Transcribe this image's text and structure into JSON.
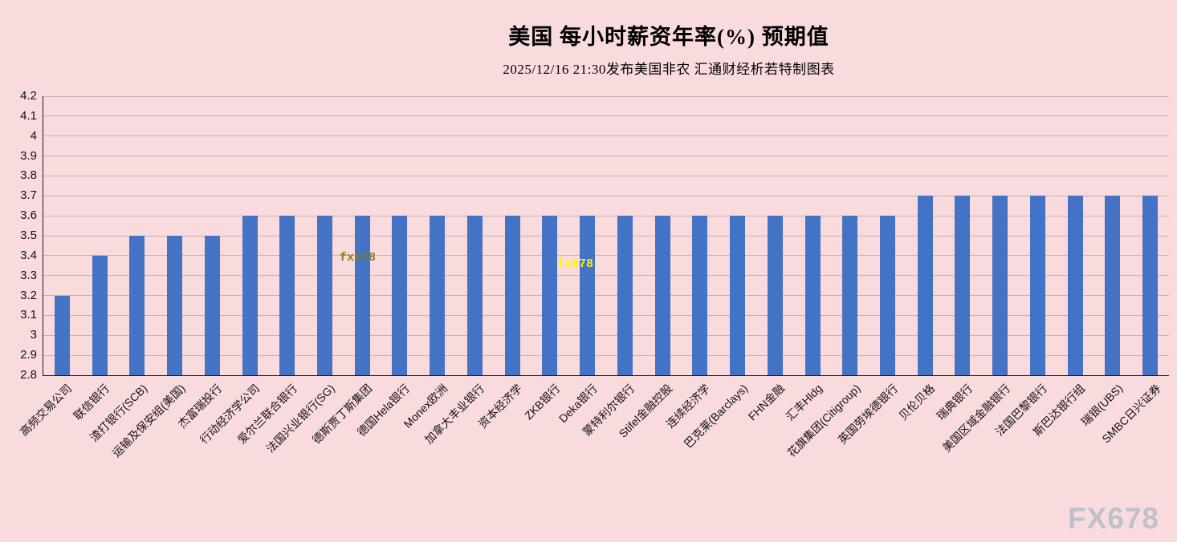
{
  "header": {
    "title": "美国 每小时薪资年率(%) 预期值",
    "subtitle": "2025/12/16 21:30发布美国非农 汇通财经析若特制图表"
  },
  "watermarks": {
    "inline_left": "fx678",
    "inline_right": "fx678",
    "corner": "FX678"
  },
  "chart_data": {
    "type": "bar",
    "title": "美国 每小时薪资年率(%) 预期值",
    "subtitle": "2025/12/16 21:30发布美国非农 汇通财经析若特制图表",
    "xlabel": "",
    "ylabel": "",
    "ylim": [
      2.8,
      4.2
    ],
    "ytick_step": 0.1,
    "grid": true,
    "legend": false,
    "bar_color": "#4472C4",
    "background": "#F9DBDE",
    "categories": [
      "高频交易公司",
      "联信银行",
      "渣打银行(SCB)",
      "运输及保安组(美国)",
      "杰富瑞投行",
      "行动经济学公司",
      "爱尔兰联合银行",
      "法国兴业银行(SG)",
      "德斯贾丁斯集团",
      "德国Hela银行",
      "Monex欧洲",
      "加拿大丰业银行",
      "资本经济学",
      "ZKB银行",
      "Deka银行",
      "蒙特利尔银行",
      "Stifel金融控股",
      "连续经济学",
      "巴克莱(Barclays)",
      "FHN金融",
      "汇丰Hldg",
      "花旗集团(Citigroup)",
      "英国劳埃德银行",
      "贝伦贝格",
      "瑞典银行",
      "美国区域金融银行",
      "法国巴黎银行",
      "斯巴达银行组",
      "瑞银(UBS)",
      "SMBC日兴证券"
    ],
    "values": [
      3.2,
      3.4,
      3.5,
      3.5,
      3.5,
      3.6,
      3.6,
      3.6,
      3.6,
      3.6,
      3.6,
      3.6,
      3.6,
      3.6,
      3.6,
      3.6,
      3.6,
      3.6,
      3.6,
      3.6,
      3.6,
      3.6,
      3.6,
      3.7,
      3.7,
      3.7,
      3.7,
      3.7,
      3.7,
      3.7
    ]
  }
}
